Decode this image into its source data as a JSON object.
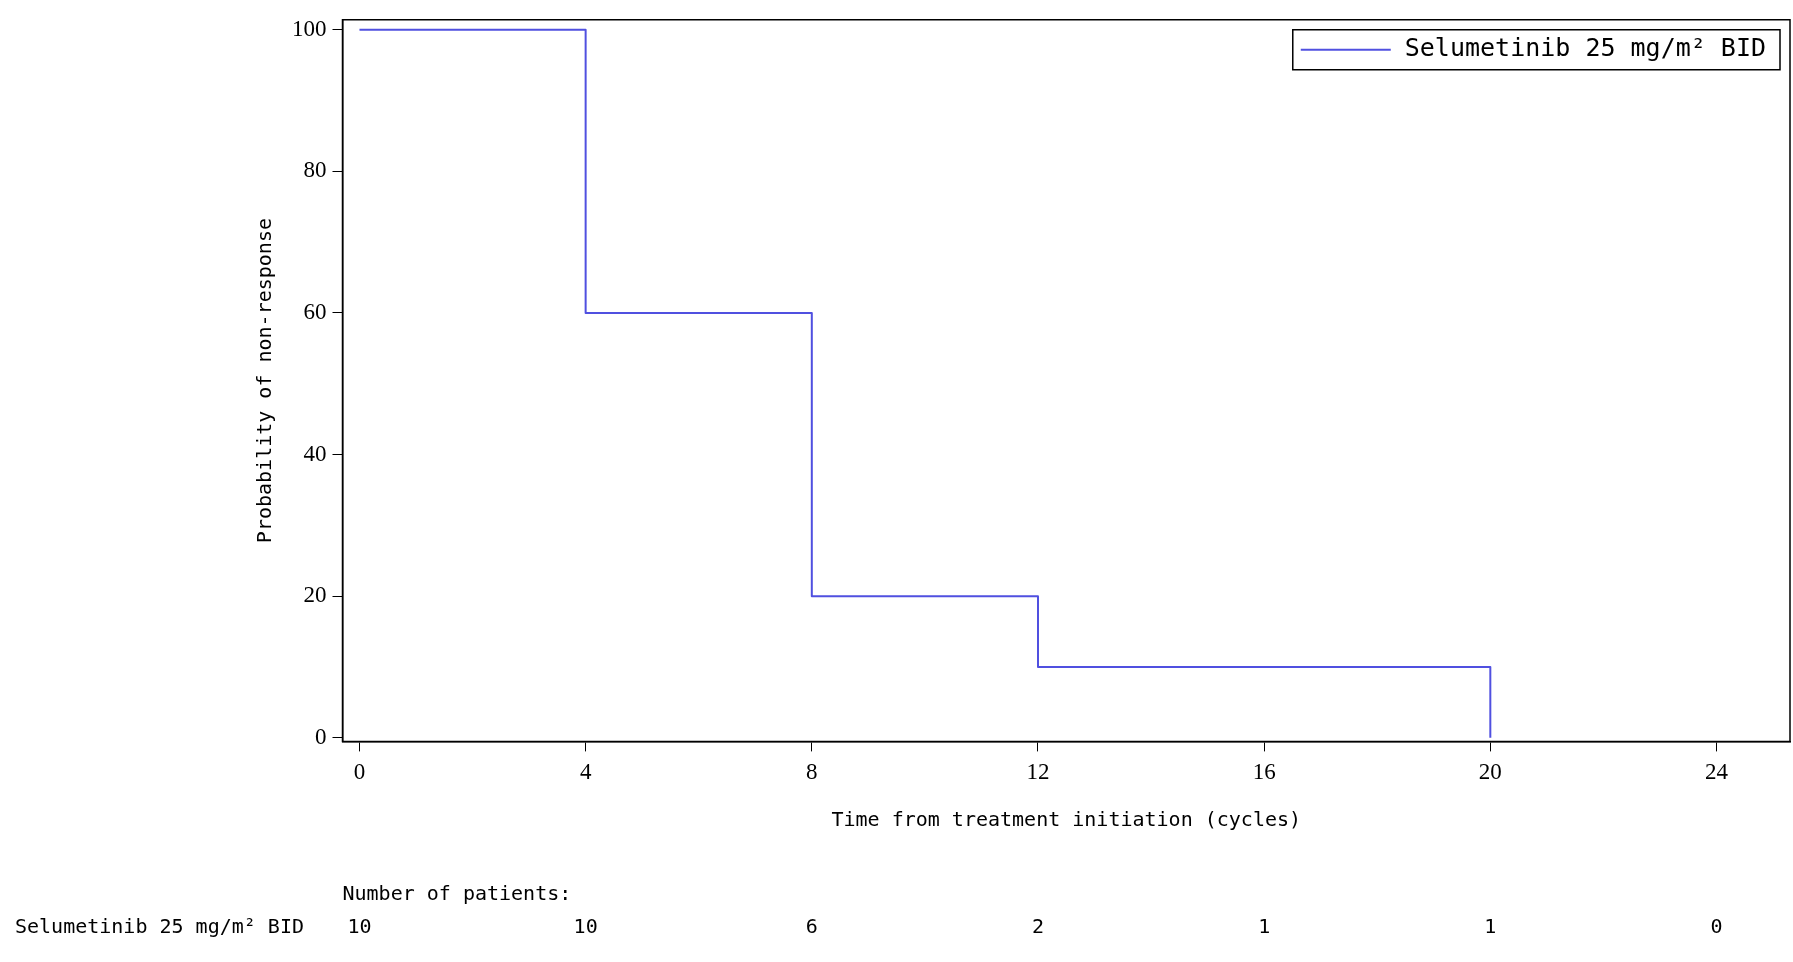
{
  "chart_data": {
    "type": "step",
    "xlabel": "Time from treatment initiation (cycles)",
    "ylabel": "Probability of non-response",
    "x": [
      0,
      4,
      8,
      12,
      20
    ],
    "series": [
      {
        "name": "Selumetinib 25 mg/m² BID",
        "color": "#5050e0",
        "values": [
          100,
          60,
          20,
          10,
          0
        ]
      }
    ],
    "xlim": [
      -0.3,
      25.3
    ],
    "xticks": [
      0,
      4,
      8,
      12,
      16,
      20,
      24
    ],
    "ylim": [
      -0.5,
      101.4
    ],
    "yticks": [
      0,
      20,
      40,
      60,
      80,
      100
    ],
    "grid": false,
    "legend": "top right",
    "marker": "none",
    "line_style": "solid",
    "annotations": [
      "Number of patients:",
      "Selumetinib 25 mg/m² BID",
      "10",
      "10",
      "6",
      "2",
      "1",
      "1",
      "0"
    ]
  }
}
